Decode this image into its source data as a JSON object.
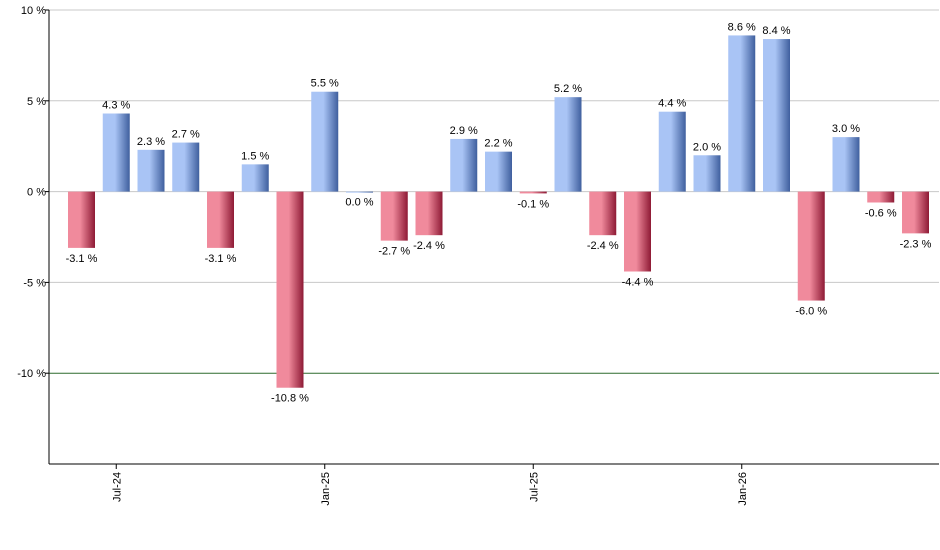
{
  "chart_data": {
    "type": "bar",
    "title": "",
    "xlabel": "",
    "ylabel": "",
    "ylim": [
      -15,
      10
    ],
    "y_ticks": [
      10,
      5,
      0,
      -5,
      -10
    ],
    "y_tick_labels": [
      "10 %",
      "5 %",
      "0 %",
      "-5 %",
      "-10 %"
    ],
    "grid": true,
    "legend": "none",
    "reference_line": -10,
    "x_tick_labels": [
      {
        "label": "Jul-24",
        "index": 1
      },
      {
        "label": "Jan-25",
        "index": 7
      },
      {
        "label": "Jul-25",
        "index": 13
      },
      {
        "label": "Jan-26",
        "index": 19
      }
    ],
    "values": [
      -3.1,
      4.3,
      2.3,
      2.7,
      -3.1,
      1.5,
      -10.8,
      5.5,
      0.0,
      -2.7,
      -2.4,
      2.9,
      2.2,
      -0.1,
      5.2,
      -2.4,
      -4.4,
      4.4,
      2.0,
      8.6,
      8.4,
      -6.0,
      3.0,
      -0.6,
      -2.3
    ],
    "data_labels": [
      "-3.1 %",
      "4.3 %",
      "2.3 %",
      "2.7 %",
      "-3.1 %",
      "1.5 %",
      "-10.8 %",
      "5.5 %",
      "0.0 %",
      "-2.7 %",
      "-2.4 %",
      "2.9 %",
      "2.2 %",
      "-0.1 %",
      "5.2 %",
      "-2.4 %",
      "-4.4 %",
      "4.4 %",
      "2.0 %",
      "8.6 %",
      "8.4 %",
      "-6.0 %",
      "3.0 %",
      "-0.6 %",
      "-2.3 %"
    ],
    "colors": {
      "positive_light": "#a9c4f5",
      "positive_dark": "#3f5f9e",
      "negative_light": "#f08a9c",
      "negative_dark": "#8e1a35",
      "grid": "#c8c8c8",
      "axis": "#000000",
      "reference_line": "#2e6b2e"
    }
  }
}
